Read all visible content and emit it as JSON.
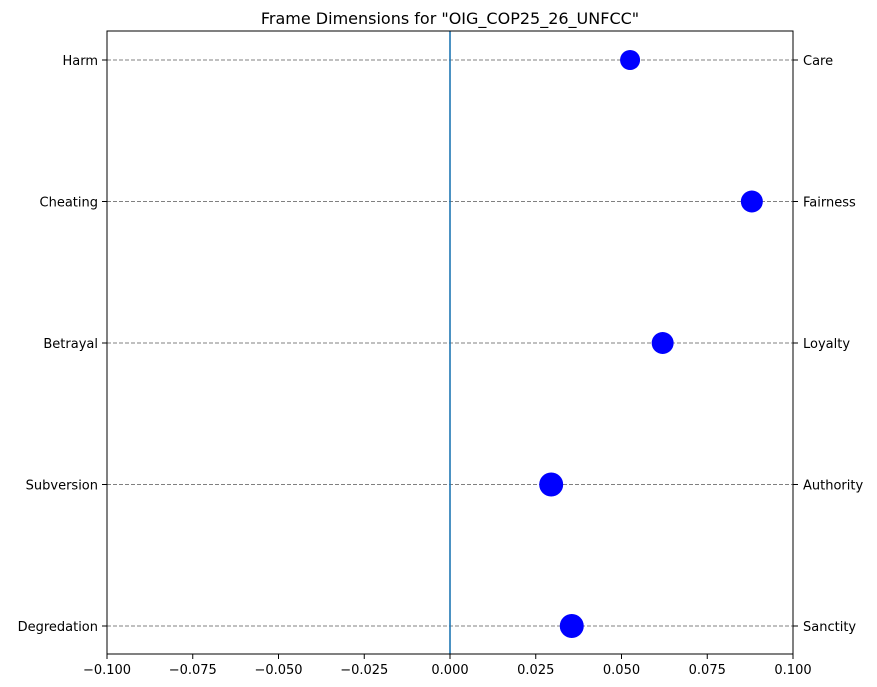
{
  "chart_data": {
    "type": "scatter",
    "title": "Frame Dimensions for \"OIG_COP25_26_UNFCC\"",
    "xlim": [
      -0.1,
      0.1
    ],
    "x_ticks": [
      -0.1,
      -0.075,
      -0.05,
      -0.025,
      0.0,
      0.025,
      0.05,
      0.075,
      0.1
    ],
    "x_tick_labels": [
      "−0.100",
      "−0.075",
      "−0.050",
      "−0.025",
      "0.000",
      "0.025",
      "0.050",
      "0.075",
      "0.100"
    ],
    "left_labels": [
      "Harm",
      "Cheating",
      "Betrayal",
      "Subversion",
      "Degredation"
    ],
    "right_labels": [
      "Care",
      "Fairness",
      "Loyalty",
      "Authority",
      "Sanctity"
    ],
    "values": [
      0.0525,
      0.088,
      0.062,
      0.0295,
      0.0355
    ],
    "marker_color": "#0000ff",
    "zero_line_color": "#1f77b4",
    "grid_color": "#808080",
    "grid": true
  }
}
